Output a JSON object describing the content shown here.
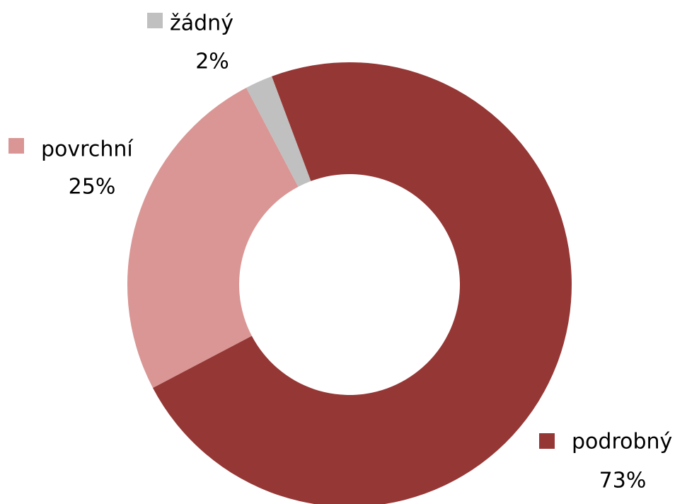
{
  "chart_data": {
    "type": "donut",
    "categories": [
      "podrobný",
      "povrchní",
      "žádný"
    ],
    "values": [
      73,
      25,
      2
    ],
    "value_labels": [
      "73%",
      "25%",
      "2%"
    ],
    "colors": [
      "#953735",
      "#d99694",
      "#c0c0c0"
    ]
  }
}
